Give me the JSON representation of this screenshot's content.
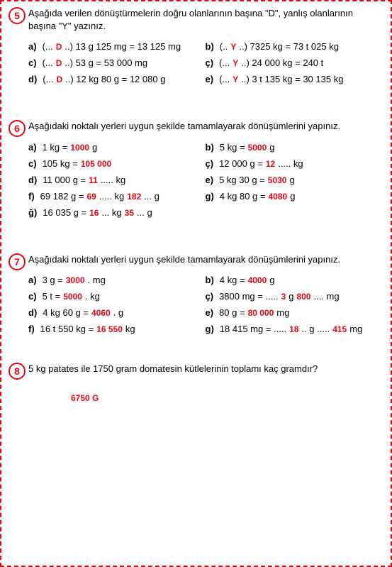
{
  "q5": {
    "num": "5",
    "prompt": "Aşağıda verilen dönüştürmelerin doğru olanlarının başına \"D\", yanlış olanlarının başına \"Y\" yazınız.",
    "items": [
      {
        "l": "a)",
        "pre": "(...",
        "ans": "D",
        "post": "..) 13 g 125 mg = 13 125 mg"
      },
      {
        "l": "b)",
        "pre": "(..",
        "ans": "Y",
        "post": "..) 7325 kg = 73 t 025 kg"
      },
      {
        "l": "c)",
        "pre": "(...",
        "ans": "D",
        "post": "..) 53 g = 53 000 mg"
      },
      {
        "l": "ç)",
        "pre": "(...",
        "ans": "Y",
        "post": "..) 24 000 kg = 240 t"
      },
      {
        "l": "d)",
        "pre": "(...",
        "ans": "D",
        "post": "..) 12 kg 80 g = 12 080 g"
      },
      {
        "l": "e)",
        "pre": "(...",
        "ans": "Y",
        "post": "..) 3 t 135 kg = 30 135 kg"
      }
    ]
  },
  "q6": {
    "num": "6",
    "prompt": "Aşağıdaki noktalı yerleri uygun şekilde tamamlayarak dönüşümlerini yapınız.",
    "items": [
      {
        "l": "a)",
        "parts": [
          "1 kg = ",
          {
            "a": "1000"
          },
          " g"
        ]
      },
      {
        "l": "b)",
        "parts": [
          "5 kg = ",
          {
            "a": "5000"
          },
          " g"
        ]
      },
      {
        "l": "c)",
        "parts": [
          "105 kg = ",
          {
            "a": "105 000"
          }
        ]
      },
      {
        "l": "ç)",
        "parts": [
          "12 000 g = ",
          {
            "a": "12"
          },
          "..... kg"
        ]
      },
      {
        "l": "d)",
        "parts": [
          "11 000 g = ",
          {
            "a": "11"
          },
          "..... kg"
        ]
      },
      {
        "l": "e)",
        "parts": [
          "5 kg 30 g = ",
          {
            "a": "5030"
          },
          "g"
        ]
      },
      {
        "l": "f)",
        "parts": [
          "69 182 g = ",
          {
            "a": "69"
          },
          "..... kg ",
          {
            "a": "182"
          },
          "... g"
        ]
      },
      {
        "l": "g)",
        "parts": [
          "4 kg 80 g = ",
          {
            "a": "4080"
          },
          " g"
        ]
      },
      {
        "l": "ğ)",
        "parts": [
          "16 035 g = ",
          {
            "a": "16"
          },
          "... kg ",
          {
            "a": "35"
          },
          "... g"
        ]
      },
      {
        "l": "",
        "parts": [
          ""
        ]
      }
    ]
  },
  "q7": {
    "num": "7",
    "prompt": "Aşağıdaki noktalı yerleri uygun şekilde tamamlayarak dönüşümlerini yapınız.",
    "items": [
      {
        "l": "a)",
        "parts": [
          "3 g = ",
          {
            "a": "3000"
          },
          ". mg"
        ]
      },
      {
        "l": "b)",
        "parts": [
          "4 kg = ",
          {
            "a": "4000"
          },
          " g"
        ]
      },
      {
        "l": "c)",
        "parts": [
          "5 t = ",
          {
            "a": "5000"
          },
          ". kg"
        ]
      },
      {
        "l": "ç)",
        "parts": [
          "3800 mg = ..... ",
          {
            "a": "3"
          },
          " g ",
          {
            "a": "800"
          },
          ".... mg"
        ]
      },
      {
        "l": "d)",
        "parts": [
          "4 kg 60 g = ",
          {
            "a": "4060"
          },
          ". g"
        ]
      },
      {
        "l": "e)",
        "parts": [
          "80 g = ",
          {
            "a": "80 000"
          },
          "mg"
        ]
      },
      {
        "l": "f)",
        "parts": [
          "16 t 550 kg = ",
          {
            "a": "16 550"
          },
          " kg"
        ]
      },
      {
        "l": "g)",
        "parts": [
          "18 415 mg = ..... ",
          {
            "a": "18"
          },
          ".. g ..... ",
          {
            "a": "415"
          },
          " mg"
        ]
      }
    ]
  },
  "q8": {
    "num": "8",
    "prompt": "5 kg patates ile 1750 gram domatesin kütlelerinin toplamı kaç gramdır?",
    "answer": "6750 G"
  }
}
